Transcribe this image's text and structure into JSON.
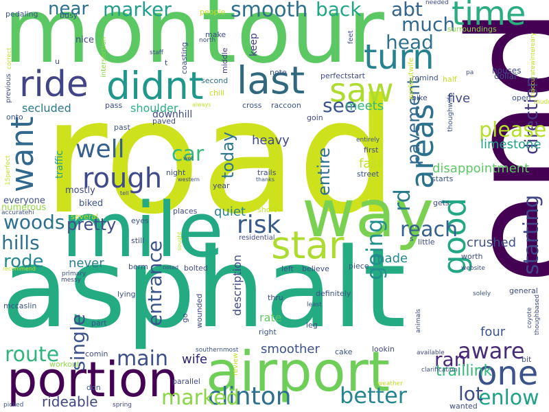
{
  "words": [
    {
      "text": "road",
      "color": "#cde11d"
    },
    {
      "text": "end",
      "color": "#440154"
    },
    {
      "text": "asphalt",
      "color": "#25ab82"
    },
    {
      "text": "montour",
      "color": "#5cc863"
    },
    {
      "text": "mile",
      "color": "#23a983"
    },
    {
      "text": "way",
      "color": "#7ad151"
    },
    {
      "text": "airport",
      "color": "#6ece58"
    },
    {
      "text": "portion",
      "color": "#440154"
    },
    {
      "text": "ride",
      "color": "#414487"
    },
    {
      "text": "didnt",
      "color": "#1f988b"
    },
    {
      "text": "last",
      "color": "#30697e"
    },
    {
      "text": "star",
      "color": "#addc30"
    },
    {
      "text": "saw",
      "color": "#addc30"
    },
    {
      "text": "turn",
      "color": "#26828e"
    },
    {
      "text": "time",
      "color": "#29af7f"
    },
    {
      "text": "areas",
      "color": "#2c728e"
    },
    {
      "text": "one",
      "color": "#3b528b"
    },
    {
      "text": "want",
      "color": "#31688e"
    },
    {
      "text": "rough",
      "color": "#3e4a89"
    },
    {
      "text": "well",
      "color": "#355f8d"
    },
    {
      "text": "car",
      "color": "#35b779"
    },
    {
      "text": "risk",
      "color": "#38598c"
    },
    {
      "text": "clinton",
      "color": "#2d708e"
    },
    {
      "text": "better",
      "color": "#25858e"
    },
    {
      "text": "going",
      "color": "#21908d"
    },
    {
      "text": "good",
      "color": "#22a785"
    },
    {
      "text": "pavement",
      "color": "#31688e"
    },
    {
      "text": "starting",
      "color": "#404688"
    },
    {
      "text": "direction",
      "color": "#453882"
    },
    {
      "text": "please",
      "color": "#b5de2b"
    },
    {
      "text": "reach",
      "color": "#34618d"
    },
    {
      "text": "aware",
      "color": "#472c7a"
    },
    {
      "text": "enlow",
      "color": "#1fa188"
    },
    {
      "text": "lot",
      "color": "#3e4c8a"
    },
    {
      "text": "ran",
      "color": "#482677"
    },
    {
      "text": "marked",
      "color": "#8bd646"
    },
    {
      "text": "main",
      "color": "#3c4f8a"
    },
    {
      "text": "route",
      "color": "#2fb47c"
    },
    {
      "text": "single",
      "color": "#3b528b"
    },
    {
      "text": "entrance",
      "color": "#39558c"
    },
    {
      "text": "woods",
      "color": "#2d708e"
    },
    {
      "text": "hills",
      "color": "#2d718e"
    },
    {
      "text": "rode",
      "color": "#24878e"
    },
    {
      "text": "pretty",
      "color": "#3d4d8a"
    },
    {
      "text": "entire",
      "color": "#2e6e8e"
    },
    {
      "text": "today",
      "color": "#2c738e"
    },
    {
      "text": "marker",
      "color": "#1f9e89"
    },
    {
      "text": "smooth",
      "color": "#2e6f8e"
    },
    {
      "text": "back",
      "color": "#21a685"
    },
    {
      "text": "abt",
      "color": "#33628d"
    },
    {
      "text": "much",
      "color": "#31688e"
    },
    {
      "text": "head",
      "color": "#2c728e"
    },
    {
      "text": "rd",
      "color": "#29798e"
    },
    {
      "text": "see",
      "color": "#3a548c"
    },
    {
      "text": "near",
      "color": "#2c728e"
    },
    {
      "text": "meets",
      "color": "#32b67a"
    },
    {
      "text": "heavy",
      "color": "#3f4889"
    },
    {
      "text": "fast",
      "color": "#c2df23"
    },
    {
      "text": "crushed",
      "color": "#3b518b"
    },
    {
      "text": "limestone",
      "color": "#1fa187"
    },
    {
      "text": "disappointment",
      "color": "#5cc863"
    },
    {
      "text": "five",
      "color": "#3e4989"
    },
    {
      "text": "four",
      "color": "#3b528b"
    },
    {
      "text": "made",
      "color": "#23888e"
    },
    {
      "text": "never",
      "color": "#287c8e"
    },
    {
      "text": "smoother",
      "color": "#3b528b"
    },
    {
      "text": "wife",
      "color": "#2d1e6f"
    },
    {
      "text": "traillink",
      "color": "#35b779"
    },
    {
      "text": "rideable",
      "color": "#3f4788"
    },
    {
      "text": "quiet",
      "color": "#26828e"
    },
    {
      "text": "description",
      "color": "#3e4989"
    },
    {
      "text": "rate",
      "color": "#5ec962"
    },
    {
      "text": "secluded",
      "color": "#2a788e"
    },
    {
      "text": "shoulder",
      "color": "#29af7f"
    },
    {
      "text": "keep",
      "color": "#433e85"
    },
    {
      "text": "traffic",
      "color": "#1fa187"
    },
    {
      "text": "downhill",
      "color": "#3e4989"
    },
    {
      "text": "biked",
      "color": "#3b528b"
    },
    {
      "text": "mostly",
      "color": "#3e4989"
    },
    {
      "text": "everyone",
      "color": "#3b528b"
    },
    {
      "text": "numerous",
      "color": "#90d743"
    },
    {
      "text": "nice",
      "color": "#3e4989"
    },
    {
      "text": "busy",
      "color": "#3b528b"
    },
    {
      "text": "pedaling",
      "color": "#3b528b"
    },
    {
      "text": "coasting",
      "color": "#3e4989"
    },
    {
      "text": "middle",
      "color": "#443983"
    },
    {
      "text": "second",
      "color": "#2e6f8e"
    },
    {
      "text": "note",
      "color": "#3b528b"
    },
    {
      "text": "perfectstart",
      "color": "#3e4989"
    },
    {
      "text": "raccoon",
      "color": "#3b528b"
    },
    {
      "text": "goin",
      "color": "#3e4989"
    },
    {
      "text": "cross",
      "color": "#3b528b"
    },
    {
      "text": "chill",
      "color": "#c2df23"
    },
    {
      "text": "pass",
      "color": "#3e4989"
    },
    {
      "text": "onto",
      "color": "#3b528b"
    },
    {
      "text": "previous",
      "color": "#3e4989"
    },
    {
      "text": "past",
      "color": "#3b528b"
    },
    {
      "text": "paved",
      "color": "#3e4989"
    },
    {
      "text": "night",
      "color": "#3b528b"
    },
    {
      "text": "trails",
      "color": "#3e4989"
    },
    {
      "text": "street",
      "color": "#3b528b"
    },
    {
      "text": "first",
      "color": "#3e4989"
    },
    {
      "text": "entirely",
      "color": "#3b528b"
    },
    {
      "text": "year",
      "color": "#3e4989"
    },
    {
      "text": "short",
      "color": "#c2df23"
    },
    {
      "text": "places",
      "color": "#3e4989"
    },
    {
      "text": "eyes",
      "color": "#3b528b"
    },
    {
      "text": "still",
      "color": "#3e4989"
    },
    {
      "text": "berm",
      "color": "#3b528b"
    },
    {
      "text": "residential",
      "color": "#3e4989"
    },
    {
      "text": "left",
      "color": "#3b528b"
    },
    {
      "text": "believe",
      "color": "#3e4989"
    },
    {
      "text": "piece",
      "color": "#3b528b"
    },
    {
      "text": "bolted",
      "color": "#3e4989"
    },
    {
      "text": "lying",
      "color": "#3b528b"
    },
    {
      "text": "thru",
      "color": "#3e4989"
    },
    {
      "text": "definitely",
      "color": "#3b528b"
    },
    {
      "text": "leg",
      "color": "#3e4989"
    },
    {
      "text": "right",
      "color": "#3b528b"
    },
    {
      "text": "wounded",
      "color": "#3e4989"
    },
    {
      "text": "part",
      "color": "#3b528b"
    },
    {
      "text": "comin",
      "color": "#3e4989"
    },
    {
      "text": "workout",
      "color": "#8bd646"
    },
    {
      "text": "parallel",
      "color": "#3e4989"
    },
    {
      "text": "don",
      "color": "#3b528b"
    },
    {
      "text": "spring",
      "color": "#3e4989"
    },
    {
      "text": "picked",
      "color": "#3b528b"
    },
    {
      "text": "wanted",
      "color": "#3e4989"
    },
    {
      "text": "cake",
      "color": "#3b528b"
    },
    {
      "text": "lookin",
      "color": "#3e4989"
    },
    {
      "text": "mccaslin",
      "color": "#3b528b"
    },
    {
      "text": "general",
      "color": "#3e4989"
    },
    {
      "text": "coyote",
      "color": "#3b528b"
    },
    {
      "text": "thoughbased",
      "color": "#3e4989"
    },
    {
      "text": "bit",
      "color": "#3b528b"
    },
    {
      "text": "worth",
      "color": "#3e4989"
    },
    {
      "text": "website",
      "color": "#3b528b"
    },
    {
      "text": "little",
      "color": "#3e4989"
    },
    {
      "text": "solely",
      "color": "#3b528b"
    },
    {
      "text": "animals",
      "color": "#3e4989"
    },
    {
      "text": "dollar",
      "color": "#3b528b"
    },
    {
      "text": "houses",
      "color": "#3e4989"
    },
    {
      "text": "open",
      "color": "#3b528b"
    },
    {
      "text": "bike",
      "color": "#3e4989"
    },
    {
      "text": "remind",
      "color": "#3b528b"
    },
    {
      "text": "half",
      "color": "#c2df23"
    },
    {
      "text": "gets",
      "color": "#3e4989"
    },
    {
      "text": "starts",
      "color": "#3b528b"
    },
    {
      "text": "surroundings",
      "color": "#8bd646"
    },
    {
      "text": "workoutwife",
      "color": "#c2df23"
    },
    {
      "text": "feet",
      "color": "#3b528b"
    },
    {
      "text": "needed",
      "color": "#3e4989"
    },
    {
      "text": "people",
      "color": "#c2df23"
    },
    {
      "text": "make",
      "color": "#3e4989"
    },
    {
      "text": "north",
      "color": "#3b528b"
    },
    {
      "text": "staff",
      "color": "#3e4989"
    },
    {
      "text": "intersection",
      "color": "#8bd646"
    },
    {
      "text": "correct",
      "color": "#c2df23"
    },
    {
      "text": "always",
      "color": "#c2df23"
    },
    {
      "text": "thanks",
      "color": "#3b528b"
    },
    {
      "text": "western",
      "color": "#3e4989"
    },
    {
      "text": "wet",
      "color": "#3b528b"
    },
    {
      "text": "tell",
      "color": "#3e4989"
    },
    {
      "text": "15perfect",
      "color": "#c2df23"
    },
    {
      "text": "accuratehi",
      "color": "#3b528b"
    },
    {
      "text": "several",
      "color": "#c2df23"
    },
    {
      "text": "primary",
      "color": "#3b528b"
    },
    {
      "text": "messy",
      "color": "#3e4989"
    },
    {
      "text": "noted",
      "color": "#3b528b"
    },
    {
      "text": "sought",
      "color": "#c2df23"
    },
    {
      "text": "recommend",
      "color": "#c2df23"
    },
    {
      "text": "southernmost",
      "color": "#3b528b"
    },
    {
      "text": "review",
      "color": "#c2df23"
    },
    {
      "text": "go",
      "color": "#3e4989"
    },
    {
      "text": "least",
      "color": "#3b528b"
    },
    {
      "text": "available",
      "color": "#3e4989"
    },
    {
      "text": "clarification",
      "color": "#3b528b"
    },
    {
      "text": "weather",
      "color": "#c2df23"
    },
    {
      "text": "thoughwife",
      "color": "#3b528b"
    },
    {
      "text": "inaccuratewintereary",
      "color": "#c2df23"
    },
    {
      "text": "muddy",
      "color": "#c2df23"
    },
    {
      "text": "pa",
      "color": "#3e4989"
    },
    {
      "text": "s",
      "color": "#3b528b"
    },
    {
      "text": "u",
      "color": "#3e4989"
    },
    {
      "text": "t",
      "color": "#3b528b"
    }
  ]
}
